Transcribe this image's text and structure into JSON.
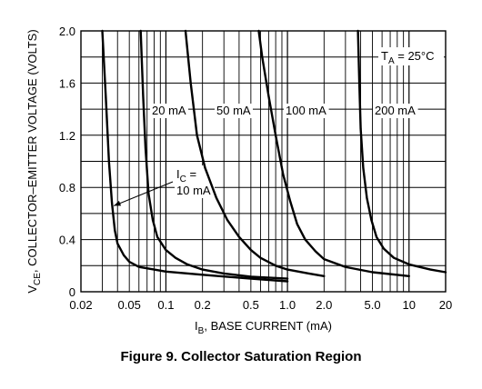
{
  "caption": "Figure 9. Collector Saturation Region",
  "chart_data": {
    "type": "line",
    "x_scale": "log",
    "xlim": [
      0.02,
      20
    ],
    "ylim": [
      0,
      2.0
    ],
    "grid": true,
    "x_ticks": [
      {
        "value": 0.02,
        "label": "0.02"
      },
      {
        "value": 0.05,
        "label": "0.05"
      },
      {
        "value": 0.1,
        "label": "0.1"
      },
      {
        "value": 0.2,
        "label": "0.2"
      },
      {
        "value": 0.5,
        "label": "0.5"
      },
      {
        "value": 1.0,
        "label": "1.0"
      },
      {
        "value": 2.0,
        "label": "2.0"
      },
      {
        "value": 5.0,
        "label": "5.0"
      },
      {
        "value": 10,
        "label": "10"
      },
      {
        "value": 20,
        "label": "20"
      }
    ],
    "y_ticks": [
      {
        "value": 0,
        "label": "0"
      },
      {
        "value": 0.4,
        "label": "0.4"
      },
      {
        "value": 0.8,
        "label": "0.8"
      },
      {
        "value": 1.2,
        "label": "1.2"
      },
      {
        "value": 1.6,
        "label": "1.6"
      },
      {
        "value": 2.0,
        "label": "2.0"
      }
    ],
    "xlabel": {
      "main": "I",
      "sub": "B",
      "rest": ", BASE CURRENT (mA)"
    },
    "ylabel": {
      "main": "V",
      "sub": "CE",
      "rest": ", COLLECTOR–EMITTER VOLTAGE (VOLTS)"
    },
    "temperature": {
      "main": "T",
      "sub": "A",
      "rest": " = 25°C"
    },
    "series": [
      {
        "name": "10 mA",
        "points": [
          [
            0.03,
            2.0
          ],
          [
            0.032,
            1.5
          ],
          [
            0.034,
            1.0
          ],
          [
            0.036,
            0.68
          ],
          [
            0.038,
            0.47
          ],
          [
            0.04,
            0.37
          ],
          [
            0.045,
            0.28
          ],
          [
            0.05,
            0.23
          ],
          [
            0.06,
            0.19
          ],
          [
            0.08,
            0.17
          ],
          [
            0.1,
            0.155
          ],
          [
            0.2,
            0.13
          ],
          [
            0.5,
            0.1
          ],
          [
            1.0,
            0.08
          ]
        ]
      },
      {
        "name": "20 mA",
        "points": [
          [
            0.062,
            2.0
          ],
          [
            0.065,
            1.5
          ],
          [
            0.068,
            1.1
          ],
          [
            0.072,
            0.75
          ],
          [
            0.078,
            0.55
          ],
          [
            0.085,
            0.42
          ],
          [
            0.1,
            0.32
          ],
          [
            0.12,
            0.26
          ],
          [
            0.15,
            0.21
          ],
          [
            0.2,
            0.17
          ],
          [
            0.3,
            0.14
          ],
          [
            0.5,
            0.115
          ],
          [
            1.0,
            0.1
          ]
        ]
      },
      {
        "name": "50 mA",
        "points": [
          [
            0.145,
            2.0
          ],
          [
            0.16,
            1.6
          ],
          [
            0.18,
            1.2
          ],
          [
            0.21,
            0.95
          ],
          [
            0.26,
            0.72
          ],
          [
            0.32,
            0.55
          ],
          [
            0.4,
            0.42
          ],
          [
            0.5,
            0.32
          ],
          [
            0.6,
            0.26
          ],
          [
            0.8,
            0.2
          ],
          [
            1.0,
            0.17
          ],
          [
            1.5,
            0.14
          ],
          [
            2.0,
            0.12
          ]
        ]
      },
      {
        "name": "100 mA",
        "points": [
          [
            0.58,
            2.0
          ],
          [
            0.62,
            1.8
          ],
          [
            0.7,
            1.5
          ],
          [
            0.8,
            1.2
          ],
          [
            0.92,
            0.9
          ],
          [
            1.05,
            0.7
          ],
          [
            1.2,
            0.52
          ],
          [
            1.4,
            0.4
          ],
          [
            1.7,
            0.31
          ],
          [
            2.0,
            0.25
          ],
          [
            3.0,
            0.19
          ],
          [
            5.0,
            0.15
          ],
          [
            10,
            0.12
          ]
        ]
      },
      {
        "name": "200 mA",
        "points": [
          [
            3.8,
            2.0
          ],
          [
            3.9,
            1.6
          ],
          [
            4.0,
            1.25
          ],
          [
            4.2,
            0.95
          ],
          [
            4.5,
            0.72
          ],
          [
            4.9,
            0.55
          ],
          [
            5.4,
            0.42
          ],
          [
            6.2,
            0.33
          ],
          [
            7.5,
            0.26
          ],
          [
            10,
            0.21
          ],
          [
            15,
            0.17
          ],
          [
            20,
            0.15
          ]
        ]
      }
    ],
    "curve_labels": [
      {
        "series": "10 mA",
        "lines": [
          {
            "main": "I",
            "sub": "C",
            "rest": " ="
          },
          {
            "main": "10 mA"
          }
        ]
      },
      {
        "series": "20 mA",
        "text": "20 mA"
      },
      {
        "series": "50 mA",
        "text": "50 mA"
      },
      {
        "series": "100 mA",
        "text": "100 mA"
      },
      {
        "series": "200 mA",
        "text": "200 mA"
      }
    ]
  }
}
